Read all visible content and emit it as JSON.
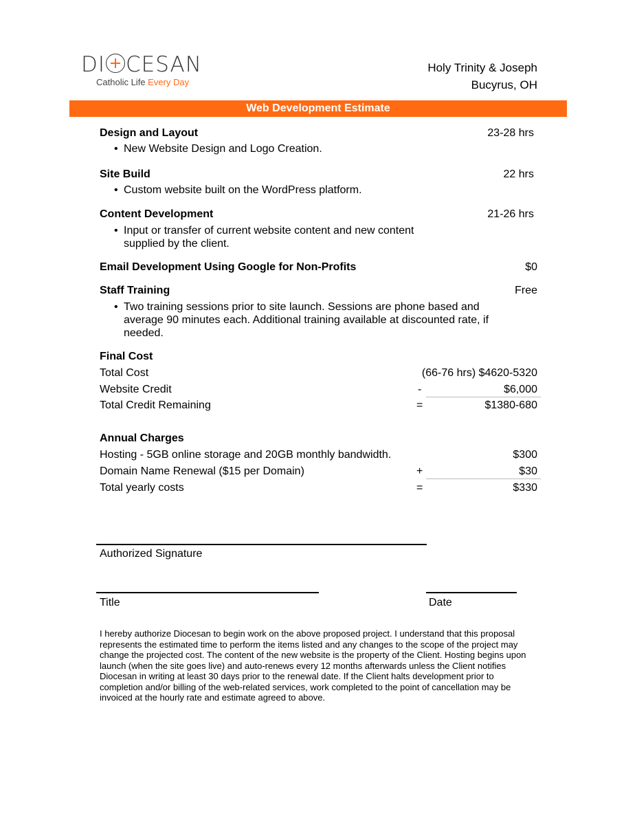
{
  "logo": {
    "word_left": "DI",
    "word_right": "CESAN",
    "tagline_a": "Catholic Life ",
    "tagline_b": "Every Day",
    "accent": "#ff6a13"
  },
  "client": {
    "name": "Holy Trinity & Joseph",
    "location": "Bucyrus, OH"
  },
  "banner": "Web Development Estimate",
  "items": [
    {
      "title": "Design and Layout",
      "value": "23-28  hrs",
      "bullet": "New Website Design and Logo Creation."
    },
    {
      "title": "Site Build",
      "value": "22  hrs",
      "bullet": "Custom website built on the WordPress platform."
    },
    {
      "title": "Content Development",
      "value": "21-26  hrs",
      "bullet": "Input or transfer of current website content and new content supplied by the client."
    },
    {
      "title": "Email Development Using Google for Non-Profits",
      "value": "$0"
    },
    {
      "title": "Staff Training",
      "value": "Free",
      "bullet": "Two training sessions prior to site launch. Sessions are phone based and average 90 minutes each. Additional training available at discounted rate, if needed."
    }
  ],
  "final": {
    "heading": "Final Cost",
    "rows": [
      {
        "label": "Total Cost",
        "op": "",
        "value": "(66-76 hrs) $4620-5320"
      },
      {
        "label": "Website Credit",
        "op": "-",
        "value": "$6,000"
      },
      {
        "label": "Total Credit Remaining",
        "op": "=",
        "value": "$1380-680"
      }
    ]
  },
  "annual": {
    "heading": "Annual Charges",
    "rows": [
      {
        "label": "Hosting - 5GB online storage and 20GB monthly bandwidth.",
        "op": "",
        "value": "$300"
      },
      {
        "label": "Domain Name Renewal ($15 per Domain)",
        "op": "+",
        "value": "$30"
      },
      {
        "label": "Total yearly costs",
        "op": "=",
        "value": "$330"
      }
    ]
  },
  "signature": {
    "authorized": "Authorized Signature",
    "title": "Title",
    "date": "Date"
  },
  "disclaimer": "I hereby authorize Diocesan to begin work on the above proposed project. I understand that this proposal represents the estimated time to perform the items listed and any changes to the scope of the project may change the projected cost. The content of the new website is the property of the Client. Hosting begins upon launch (when the site goes live) and auto-renews every 12 months afterwards unless the Client notifies Diocesan in writing at least 30 days prior to the renewal date. If the Client halts development prior to completion and/or billing of the web-related services, work completed to the point of cancellation may be invoiced at the hourly rate and estimate agreed to above."
}
